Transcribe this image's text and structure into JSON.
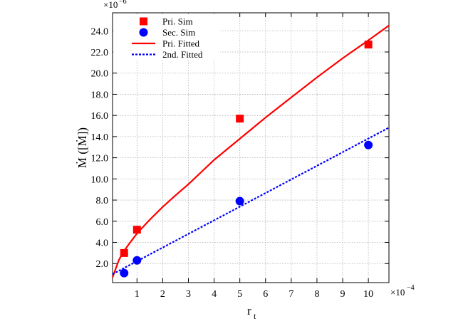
{
  "chart_data": {
    "type": "scatter",
    "x_ticks": [
      1,
      2,
      3,
      4,
      5,
      6,
      7,
      8,
      9,
      10
    ],
    "x_tick_labels": [
      "1",
      "2",
      "3",
      "4",
      "5",
      "6",
      "7",
      "8",
      "9",
      "10"
    ],
    "y_ticks": [
      2,
      4,
      6,
      8,
      10,
      12,
      14,
      16,
      18,
      20,
      22,
      24
    ],
    "y_tick_labels": [
      "2.0",
      "4.0",
      "6.0",
      "8.0",
      "10.0",
      "12.0",
      "14.0",
      "16.0",
      "18.0",
      "20.0",
      "22.0",
      "24.0"
    ],
    "xlim": [
      0.05,
      10.8
    ],
    "ylim": [
      0.2,
      25.7
    ],
    "x_multiplier": "×10",
    "x_exponent": "−4",
    "y_multiplier": "×10",
    "y_exponent": "−6",
    "xlabel_base": "r",
    "xlabel_sub": "t",
    "ylabel": "Ṁ ([Ṁ])",
    "grid": true,
    "legend_position": "top-left",
    "series": [
      {
        "name": "Pri. Sim",
        "kind": "points",
        "marker": "square",
        "color": "#ff0000",
        "x": [
          0.5,
          1.0,
          5.0,
          10.0
        ],
        "y": [
          3.0,
          5.2,
          15.7,
          22.7
        ]
      },
      {
        "name": "Sec. Sim",
        "kind": "points",
        "marker": "circle",
        "color": "#0000ff",
        "x": [
          0.5,
          1.0,
          5.0,
          10.0
        ],
        "y": [
          1.1,
          2.3,
          7.9,
          13.2
        ]
      },
      {
        "name": "Pri. Fitted",
        "kind": "curve",
        "style": "solid",
        "color": "#ff0000",
        "x": [
          0.05,
          0.3,
          0.5,
          0.75,
          1.0,
          1.5,
          2.0,
          2.5,
          3.0,
          4.0,
          5.0,
          6.0,
          7.0,
          8.0,
          9.0,
          10.0,
          10.8
        ],
        "y": [
          0.7,
          2.35,
          3.2,
          4.05,
          4.85,
          6.15,
          7.35,
          8.45,
          9.5,
          11.8,
          13.8,
          15.8,
          17.7,
          19.6,
          21.4,
          23.1,
          24.5
        ]
      },
      {
        "name": "2nd. Fitted",
        "kind": "curve",
        "style": "dotted",
        "color": "#0000ff",
        "x": [
          0.05,
          10.8
        ],
        "y": [
          1.0,
          14.85
        ]
      }
    ]
  }
}
